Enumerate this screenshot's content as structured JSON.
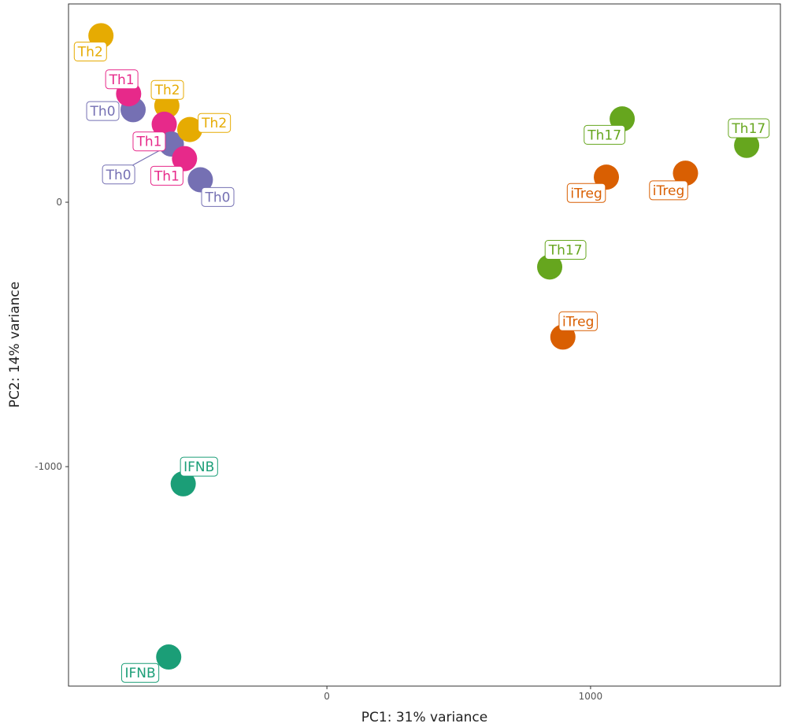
{
  "chart_data": {
    "type": "scatter",
    "title": "",
    "xlabel": "PC1: 31% variance",
    "ylabel": "PC2: 14% variance",
    "xlim": [
      -980,
      1720
    ],
    "ylim": [
      -1830,
      750
    ],
    "xticks": [
      {
        "value": 0,
        "label": "0"
      },
      {
        "value": 1000,
        "label": "1000"
      }
    ],
    "yticks": [
      {
        "value": 0,
        "label": "0"
      },
      {
        "value": -1000,
        "label": "-1000"
      }
    ],
    "grid": false,
    "legend": "none",
    "colors": {
      "Th0": "#7570b3",
      "Th1": "#e7298a",
      "Th2": "#e6ab02",
      "Th17": "#66a61e",
      "iTreg": "#d95f02",
      "IFNB": "#1b9e77"
    },
    "points": [
      {
        "group": "Th2",
        "x": -857,
        "y": 630
      },
      {
        "group": "Th0",
        "x": -735,
        "y": 350
      },
      {
        "group": "Th1",
        "x": -752,
        "y": 410
      },
      {
        "group": "Th2",
        "x": -607,
        "y": 365
      },
      {
        "group": "Th1",
        "x": -617,
        "y": 295
      },
      {
        "group": "Th0",
        "x": -590,
        "y": 220
      },
      {
        "group": "Th2",
        "x": -520,
        "y": 275
      },
      {
        "group": "Th1",
        "x": -540,
        "y": 165
      },
      {
        "group": "Th0",
        "x": -480,
        "y": 85
      },
      {
        "group": "Th17",
        "x": 1120,
        "y": 315
      },
      {
        "group": "Th17",
        "x": 1592,
        "y": 215
      },
      {
        "group": "iTreg",
        "x": 1060,
        "y": 95
      },
      {
        "group": "iTreg",
        "x": 1360,
        "y": 110
      },
      {
        "group": "Th17",
        "x": 845,
        "y": -245
      },
      {
        "group": "iTreg",
        "x": 895,
        "y": -510
      },
      {
        "group": "IFNB",
        "x": -545,
        "y": -1065
      },
      {
        "group": "IFNB",
        "x": -600,
        "y": -1720
      }
    ],
    "labels": [
      {
        "text": "Th2",
        "group": "Th2",
        "x": -897,
        "y": 570,
        "leader": false
      },
      {
        "text": "Th1",
        "group": "Th1",
        "x": -778,
        "y": 465,
        "leader": false
      },
      {
        "text": "Th2",
        "group": "Th2",
        "x": -605,
        "y": 425,
        "leader": false
      },
      {
        "text": "Th0",
        "group": "Th0",
        "x": -850,
        "y": 345,
        "leader": false
      },
      {
        "text": "Th2",
        "group": "Th2",
        "x": -427,
        "y": 300,
        "leader": false
      },
      {
        "text": "Th1",
        "group": "Th1",
        "x": -674,
        "y": 230,
        "leader": false
      },
      {
        "text": "Th0",
        "group": "Th0",
        "x": -790,
        "y": 105,
        "leader": true
      },
      {
        "text": "Th1",
        "group": "Th1",
        "x": -607,
        "y": 100,
        "leader": false
      },
      {
        "text": "Th0",
        "group": "Th0",
        "x": -414,
        "y": 20,
        "leader": false
      },
      {
        "text": "Th17",
        "group": "Th17",
        "x": 1053,
        "y": 255,
        "leader": false
      },
      {
        "text": "Th17",
        "group": "Th17",
        "x": 1600,
        "y": 280,
        "leader": false
      },
      {
        "text": "iTreg",
        "group": "iTreg",
        "x": 984,
        "y": 35,
        "leader": false
      },
      {
        "text": "iTreg",
        "group": "iTreg",
        "x": 1296,
        "y": 45,
        "leader": false
      },
      {
        "text": "Th17",
        "group": "Th17",
        "x": 905,
        "y": -180,
        "leader": false
      },
      {
        "text": "iTreg",
        "group": "iTreg",
        "x": 953,
        "y": -450,
        "leader": false
      },
      {
        "text": "IFNB",
        "group": "IFNB",
        "x": -485,
        "y": -1000,
        "leader": false
      },
      {
        "text": "IFNB",
        "group": "IFNB",
        "x": -708,
        "y": -1780,
        "leader": false
      }
    ]
  }
}
